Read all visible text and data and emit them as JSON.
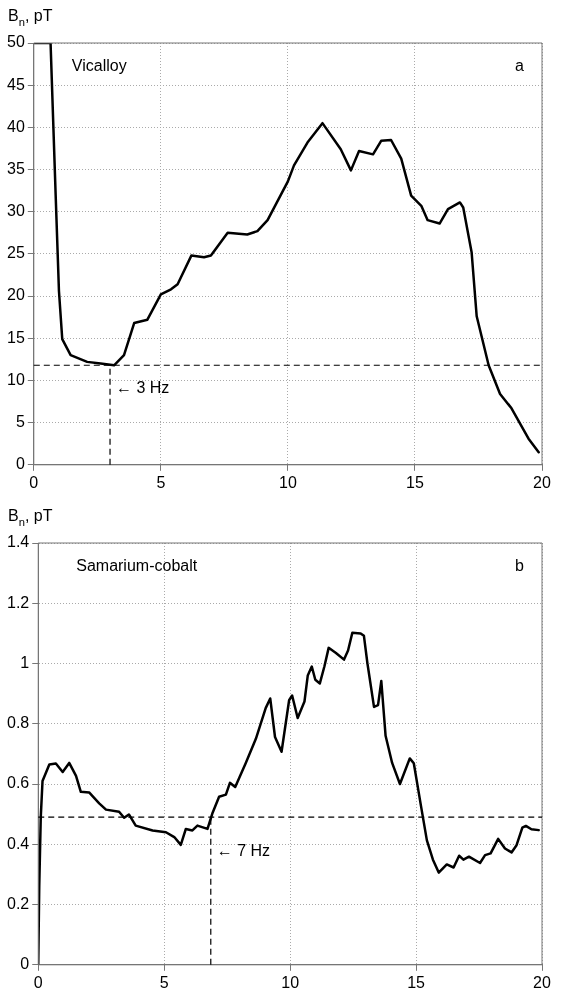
{
  "chart_data": [
    {
      "type": "line",
      "ylabel": "B$_{n}$, pT",
      "annotations": [
        "Vicalloy",
        "a"
      ],
      "xlim": [
        0,
        20
      ],
      "xticks": [
        0,
        5,
        10,
        15,
        20
      ],
      "ylim": [
        0,
        50
      ],
      "yticks": [
        0,
        5,
        10,
        15,
        20,
        25,
        30,
        35,
        40,
        45,
        50
      ],
      "grid": true,
      "legend": false,
      "marker": "none",
      "line_style": "solid",
      "ref_lines": [
        {
          "axis": "y",
          "value": 11.8,
          "line_style": "dashed"
        },
        {
          "axis": "x",
          "value": 3,
          "label": "← 3 Hz",
          "line_style": "dashed"
        }
      ],
      "series": [
        {
          "color": "#000000",
          "x": [
            0,
            0.66,
            0.86,
            0.99,
            1.12,
            1.45,
            2.1,
            2.63,
            3.16,
            3.55,
            3.95,
            4.47,
            5,
            5.4,
            5.66,
            6.2,
            6.7,
            6.97,
            7.63,
            8.4,
            8.8,
            9.2,
            10,
            10.24,
            10.77,
            11.36,
            12.08,
            12.48,
            12.8,
            13.35,
            13.67,
            14.06,
            14.46,
            14.85,
            15.25,
            15.5,
            15.97,
            16.3,
            16.77,
            16.9,
            17.23,
            17.43,
            17.9,
            18.35,
            18.8,
            19.47,
            19.87
          ],
          "values": [
            50,
            50,
            32,
            20.6,
            14.9,
            13,
            12.2,
            12,
            11.8,
            13,
            16.8,
            17.2,
            20.2,
            20.8,
            21.4,
            24.8,
            24.6,
            24.8,
            27.5,
            27.3,
            27.7,
            29,
            33.6,
            35.5,
            38.2,
            40.5,
            37.4,
            34.9,
            37.2,
            36.8,
            38.4,
            38.5,
            36.3,
            31.9,
            30.7,
            29,
            28.6,
            30.3,
            31.1,
            30.5,
            25.2,
            17.6,
            11.8,
            8.4,
            6.7,
            3.1,
            1.5
          ]
        }
      ]
    },
    {
      "type": "line",
      "ylabel": "B$_{n}$, pT",
      "annotations": [
        "Samarium-cobalt",
        "b"
      ],
      "xlim": [
        0,
        20
      ],
      "xticks": [
        0,
        5,
        10,
        15,
        20
      ],
      "ylim": [
        0,
        1.4
      ],
      "yticks": [
        0,
        0.2,
        0.4,
        0.6,
        0.8,
        1,
        1.2,
        1.4
      ],
      "grid": true,
      "legend": false,
      "marker": "none",
      "line_style": "solid",
      "ref_lines": [
        {
          "axis": "y",
          "value": 0.49,
          "line_style": "dashed"
        },
        {
          "axis": "x",
          "value": 6.85,
          "label": "← 7 Hz",
          "line_style": "dashed"
        }
      ],
      "series": [
        {
          "color": "#000000",
          "x": [
            0,
            0.04,
            0.1,
            0.17,
            0.44,
            0.7,
            0.97,
            1.23,
            1.5,
            1.69,
            2.02,
            2.42,
            2.69,
            3.21,
            3.41,
            3.6,
            3.87,
            4.54,
            5.07,
            5.4,
            5.66,
            5.86,
            6.12,
            6.32,
            6.72,
            6.92,
            7.18,
            7.45,
            7.61,
            7.82,
            8.24,
            8.64,
            9.03,
            9.21,
            9.4,
            9.66,
            9.96,
            10.08,
            10.3,
            10.57,
            10.7,
            10.86,
            11,
            11.18,
            11.36,
            11.53,
            11.82,
            12.14,
            12.3,
            12.47,
            12.8,
            12.93,
            13.07,
            13.33,
            13.49,
            13.62,
            13.79,
            14.05,
            14.36,
            14.75,
            14.91,
            15.2,
            15.43,
            15.67,
            15.9,
            16.22,
            16.49,
            16.71,
            16.88,
            17.1,
            17.54,
            17.74,
            17.96,
            18.26,
            18.53,
            18.79,
            18.99,
            19.22,
            19.36,
            19.58,
            19.87
          ],
          "values": [
            0,
            0.26,
            0.49,
            0.61,
            0.665,
            0.668,
            0.64,
            0.67,
            0.627,
            0.574,
            0.572,
            0.536,
            0.515,
            0.508,
            0.488,
            0.499,
            0.462,
            0.446,
            0.44,
            0.424,
            0.398,
            0.451,
            0.446,
            0.462,
            0.451,
            0.504,
            0.558,
            0.565,
            0.604,
            0.59,
            0.67,
            0.75,
            0.852,
            0.884,
            0.756,
            0.707,
            0.878,
            0.894,
            0.819,
            0.874,
            0.96,
            0.99,
            0.946,
            0.934,
            0.99,
            1.052,
            1.035,
            1.013,
            1.043,
            1.102,
            1.1,
            1.092,
            1.0,
            0.856,
            0.862,
            0.942,
            0.76,
            0.67,
            0.6,
            0.685,
            0.669,
            0.525,
            0.413,
            0.349,
            0.306,
            0.333,
            0.323,
            0.362,
            0.349,
            0.359,
            0.338,
            0.364,
            0.37,
            0.418,
            0.386,
            0.373,
            0.397,
            0.455,
            0.461,
            0.45,
            0.447
          ]
        }
      ]
    }
  ]
}
